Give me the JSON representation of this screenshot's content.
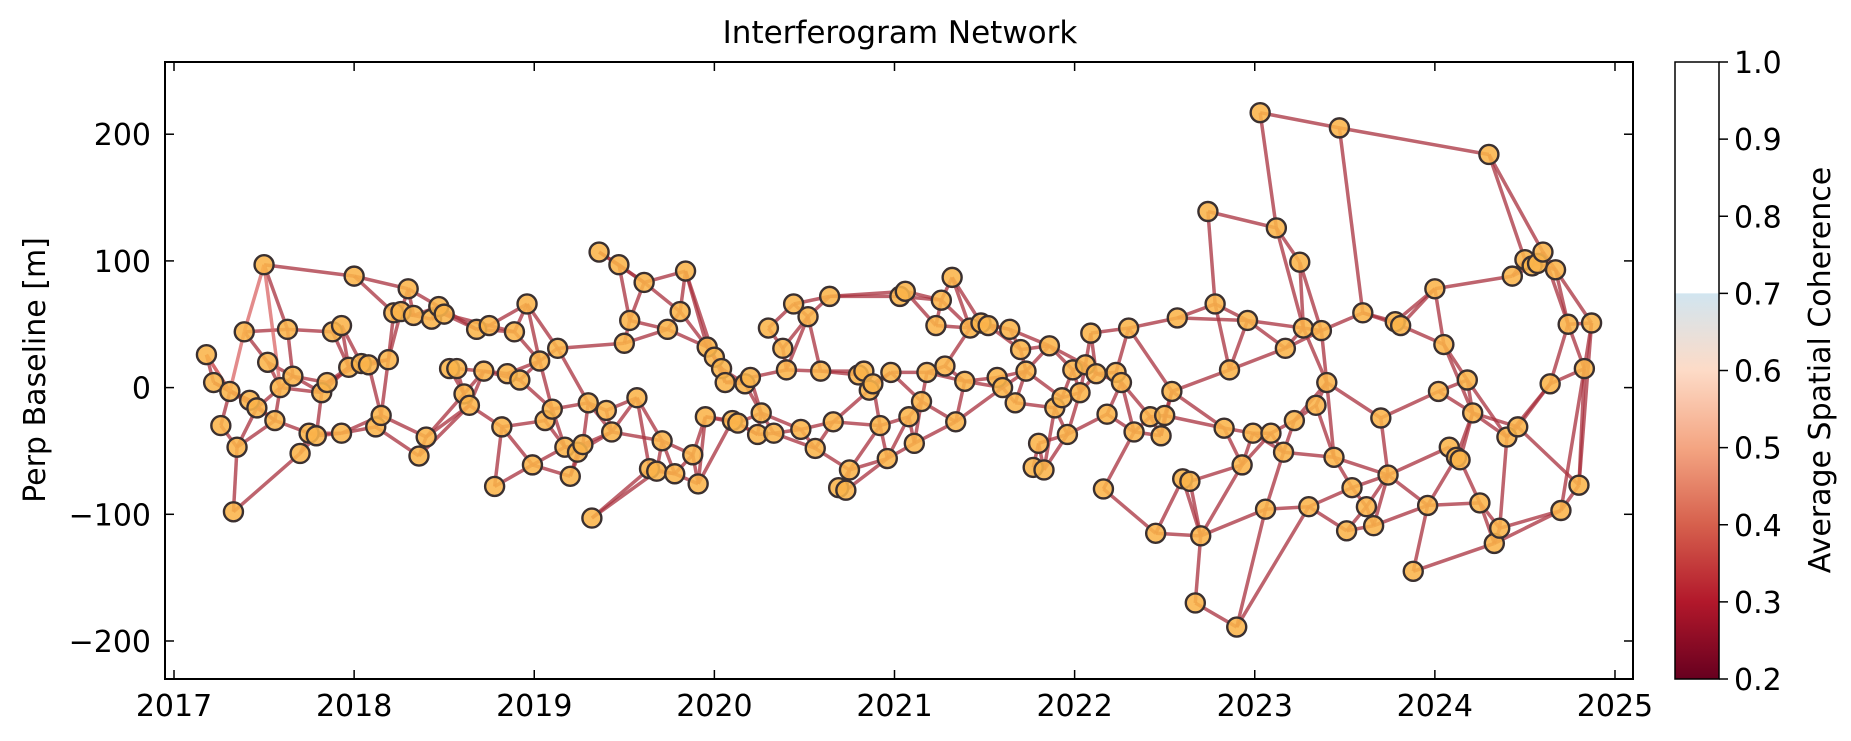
{
  "chart_data": {
    "type": "network",
    "title": "Interferogram Network",
    "xlabel": "",
    "ylabel": "Perp Baseline [m]",
    "xlim": [
      2016.95,
      2025.1
    ],
    "ylim": [
      -230,
      257
    ],
    "xticks": [
      "2017",
      "2018",
      "2019",
      "2020",
      "2021",
      "2022",
      "2023",
      "2024",
      "2025"
    ],
    "yticks": [
      -200,
      -100,
      0,
      100,
      200
    ],
    "ytick_labels": [
      "−200",
      "−100",
      "0",
      "100",
      "200"
    ],
    "colorbar": {
      "label": "Average Spatial Coherence",
      "range": [
        0.2,
        1.0
      ],
      "ticks": [
        "0.2",
        "0.3",
        "0.4",
        "0.5",
        "0.6",
        "0.7",
        "0.8",
        "0.9",
        "1.0"
      ],
      "colormap": "RdBu",
      "masked_above": 0.7
    },
    "node_color": "#fbb44a",
    "edge_color": "#a8303e",
    "acquisitions": [
      {
        "t": 2017.18,
        "bperp": 26
      },
      {
        "t": 2017.22,
        "bperp": 4
      },
      {
        "t": 2017.26,
        "bperp": -30
      },
      {
        "t": 2017.31,
        "bperp": -3
      },
      {
        "t": 2017.33,
        "bperp": -98
      },
      {
        "t": 2017.35,
        "bperp": -47
      },
      {
        "t": 2017.39,
        "bperp": 44
      },
      {
        "t": 2017.42,
        "bperp": -10
      },
      {
        "t": 2017.46,
        "bperp": -16
      },
      {
        "t": 2017.5,
        "bperp": 97
      },
      {
        "t": 2017.52,
        "bperp": 20
      },
      {
        "t": 2017.56,
        "bperp": -26
      },
      {
        "t": 2017.59,
        "bperp": 0
      },
      {
        "t": 2017.63,
        "bperp": 46
      },
      {
        "t": 2017.66,
        "bperp": 9
      },
      {
        "t": 2017.7,
        "bperp": -52
      },
      {
        "t": 2017.75,
        "bperp": -36
      },
      {
        "t": 2017.79,
        "bperp": -38
      },
      {
        "t": 2017.82,
        "bperp": -4
      },
      {
        "t": 2017.85,
        "bperp": 4
      },
      {
        "t": 2017.88,
        "bperp": 44
      },
      {
        "t": 2017.93,
        "bperp": -36
      },
      {
        "t": 2017.93,
        "bperp": 49
      },
      {
        "t": 2017.97,
        "bperp": 16
      },
      {
        "t": 2018.0,
        "bperp": 88
      },
      {
        "t": 2018.04,
        "bperp": 19
      },
      {
        "t": 2018.08,
        "bperp": 18
      },
      {
        "t": 2018.12,
        "bperp": -31
      },
      {
        "t": 2018.15,
        "bperp": -22
      },
      {
        "t": 2018.19,
        "bperp": 22
      },
      {
        "t": 2018.22,
        "bperp": 59
      },
      {
        "t": 2018.26,
        "bperp": 60
      },
      {
        "t": 2018.3,
        "bperp": 78
      },
      {
        "t": 2018.33,
        "bperp": 57
      },
      {
        "t": 2018.36,
        "bperp": -54
      },
      {
        "t": 2018.4,
        "bperp": -39
      },
      {
        "t": 2018.43,
        "bperp": 54
      },
      {
        "t": 2018.47,
        "bperp": 64
      },
      {
        "t": 2018.5,
        "bperp": 58
      },
      {
        "t": 2018.53,
        "bperp": 15
      },
      {
        "t": 2018.57,
        "bperp": 15
      },
      {
        "t": 2018.61,
        "bperp": -5
      },
      {
        "t": 2018.64,
        "bperp": -14
      },
      {
        "t": 2018.68,
        "bperp": 46
      },
      {
        "t": 2018.72,
        "bperp": 13
      },
      {
        "t": 2018.75,
        "bperp": 49
      },
      {
        "t": 2018.78,
        "bperp": -78
      },
      {
        "t": 2018.82,
        "bperp": -31
      },
      {
        "t": 2018.85,
        "bperp": 11
      },
      {
        "t": 2018.89,
        "bperp": 44
      },
      {
        "t": 2018.92,
        "bperp": 6
      },
      {
        "t": 2018.96,
        "bperp": 66
      },
      {
        "t": 2018.99,
        "bperp": -61
      },
      {
        "t": 2019.03,
        "bperp": 21
      },
      {
        "t": 2019.06,
        "bperp": -26
      },
      {
        "t": 2019.1,
        "bperp": -17
      },
      {
        "t": 2019.13,
        "bperp": 31
      },
      {
        "t": 2019.17,
        "bperp": -47
      },
      {
        "t": 2019.2,
        "bperp": -70
      },
      {
        "t": 2019.24,
        "bperp": -51
      },
      {
        "t": 2019.27,
        "bperp": -45
      },
      {
        "t": 2019.3,
        "bperp": -12
      },
      {
        "t": 2019.32,
        "bperp": -103
      },
      {
        "t": 2019.36,
        "bperp": 107
      },
      {
        "t": 2019.4,
        "bperp": -18
      },
      {
        "t": 2019.43,
        "bperp": -35
      },
      {
        "t": 2019.47,
        "bperp": 97
      },
      {
        "t": 2019.5,
        "bperp": 35
      },
      {
        "t": 2019.53,
        "bperp": 53
      },
      {
        "t": 2019.57,
        "bperp": -8
      },
      {
        "t": 2019.61,
        "bperp": 83
      },
      {
        "t": 2019.64,
        "bperp": -64
      },
      {
        "t": 2019.68,
        "bperp": -66
      },
      {
        "t": 2019.71,
        "bperp": -42
      },
      {
        "t": 2019.74,
        "bperp": 46
      },
      {
        "t": 2019.78,
        "bperp": -68
      },
      {
        "t": 2019.81,
        "bperp": 60
      },
      {
        "t": 2019.84,
        "bperp": 92
      },
      {
        "t": 2019.88,
        "bperp": -53
      },
      {
        "t": 2019.91,
        "bperp": -76
      },
      {
        "t": 2019.95,
        "bperp": -23
      },
      {
        "t": 2019.96,
        "bperp": 32
      },
      {
        "t": 2020.0,
        "bperp": 24
      },
      {
        "t": 2020.04,
        "bperp": 15
      },
      {
        "t": 2020.06,
        "bperp": 4
      },
      {
        "t": 2020.1,
        "bperp": -26
      },
      {
        "t": 2020.13,
        "bperp": -28
      },
      {
        "t": 2020.17,
        "bperp": 3
      },
      {
        "t": 2020.2,
        "bperp": 8
      },
      {
        "t": 2020.24,
        "bperp": -37
      },
      {
        "t": 2020.26,
        "bperp": -20
      },
      {
        "t": 2020.3,
        "bperp": 47
      },
      {
        "t": 2020.33,
        "bperp": -36
      },
      {
        "t": 2020.38,
        "bperp": 31
      },
      {
        "t": 2020.4,
        "bperp": 14
      },
      {
        "t": 2020.44,
        "bperp": 66
      },
      {
        "t": 2020.48,
        "bperp": -33
      },
      {
        "t": 2020.52,
        "bperp": 56
      },
      {
        "t": 2020.56,
        "bperp": -48
      },
      {
        "t": 2020.59,
        "bperp": 13
      },
      {
        "t": 2020.64,
        "bperp": 72
      },
      {
        "t": 2020.66,
        "bperp": -27
      },
      {
        "t": 2020.69,
        "bperp": -79
      },
      {
        "t": 2020.73,
        "bperp": -81
      },
      {
        "t": 2020.75,
        "bperp": -65
      },
      {
        "t": 2020.8,
        "bperp": 10
      },
      {
        "t": 2020.83,
        "bperp": 13
      },
      {
        "t": 2020.86,
        "bperp": -2
      },
      {
        "t": 2020.88,
        "bperp": 3
      },
      {
        "t": 2020.92,
        "bperp": -30
      },
      {
        "t": 2020.96,
        "bperp": -56
      },
      {
        "t": 2020.98,
        "bperp": 12
      },
      {
        "t": 2021.03,
        "bperp": 72
      },
      {
        "t": 2021.06,
        "bperp": 76
      },
      {
        "t": 2021.08,
        "bperp": -23
      },
      {
        "t": 2021.11,
        "bperp": -44
      },
      {
        "t": 2021.15,
        "bperp": -11
      },
      {
        "t": 2021.18,
        "bperp": 12
      },
      {
        "t": 2021.23,
        "bperp": 49
      },
      {
        "t": 2021.26,
        "bperp": 69
      },
      {
        "t": 2021.28,
        "bperp": 17
      },
      {
        "t": 2021.32,
        "bperp": 87
      },
      {
        "t": 2021.34,
        "bperp": -27
      },
      {
        "t": 2021.39,
        "bperp": 5
      },
      {
        "t": 2021.42,
        "bperp": 47
      },
      {
        "t": 2021.48,
        "bperp": 51
      },
      {
        "t": 2021.52,
        "bperp": 49
      },
      {
        "t": 2021.57,
        "bperp": 8
      },
      {
        "t": 2021.6,
        "bperp": 0
      },
      {
        "t": 2021.64,
        "bperp": 46
      },
      {
        "t": 2021.67,
        "bperp": -12
      },
      {
        "t": 2021.7,
        "bperp": 30
      },
      {
        "t": 2021.73,
        "bperp": 13
      },
      {
        "t": 2021.77,
        "bperp": -63
      },
      {
        "t": 2021.8,
        "bperp": -44
      },
      {
        "t": 2021.83,
        "bperp": -65
      },
      {
        "t": 2021.86,
        "bperp": 33
      },
      {
        "t": 2021.89,
        "bperp": -16
      },
      {
        "t": 2021.93,
        "bperp": -8
      },
      {
        "t": 2021.96,
        "bperp": -37
      },
      {
        "t": 2021.99,
        "bperp": 14
      },
      {
        "t": 2022.03,
        "bperp": -4
      },
      {
        "t": 2022.06,
        "bperp": 18
      },
      {
        "t": 2022.09,
        "bperp": 43
      },
      {
        "t": 2022.12,
        "bperp": 11
      },
      {
        "t": 2022.16,
        "bperp": -80
      },
      {
        "t": 2022.18,
        "bperp": -21
      },
      {
        "t": 2022.23,
        "bperp": 12
      },
      {
        "t": 2022.26,
        "bperp": 4
      },
      {
        "t": 2022.3,
        "bperp": 47
      },
      {
        "t": 2022.33,
        "bperp": -35
      },
      {
        "t": 2022.42,
        "bperp": -23
      },
      {
        "t": 2022.45,
        "bperp": -115
      },
      {
        "t": 2022.48,
        "bperp": -38
      },
      {
        "t": 2022.5,
        "bperp": -22
      },
      {
        "t": 2022.54,
        "bperp": -3
      },
      {
        "t": 2022.57,
        "bperp": 55
      },
      {
        "t": 2022.6,
        "bperp": -72
      },
      {
        "t": 2022.64,
        "bperp": -74
      },
      {
        "t": 2022.67,
        "bperp": -170
      },
      {
        "t": 2022.7,
        "bperp": -117
      },
      {
        "t": 2022.74,
        "bperp": 139
      },
      {
        "t": 2022.78,
        "bperp": 66
      },
      {
        "t": 2022.83,
        "bperp": -32
      },
      {
        "t": 2022.86,
        "bperp": 14
      },
      {
        "t": 2022.9,
        "bperp": -189
      },
      {
        "t": 2022.93,
        "bperp": -61
      },
      {
        "t": 2022.96,
        "bperp": 53
      },
      {
        "t": 2022.99,
        "bperp": -36
      },
      {
        "t": 2023.03,
        "bperp": 217
      },
      {
        "t": 2023.06,
        "bperp": -96
      },
      {
        "t": 2023.09,
        "bperp": -36
      },
      {
        "t": 2023.12,
        "bperp": 126
      },
      {
        "t": 2023.16,
        "bperp": -51
      },
      {
        "t": 2023.17,
        "bperp": 31
      },
      {
        "t": 2023.22,
        "bperp": -26
      },
      {
        "t": 2023.25,
        "bperp": 99
      },
      {
        "t": 2023.27,
        "bperp": 47
      },
      {
        "t": 2023.3,
        "bperp": -94
      },
      {
        "t": 2023.34,
        "bperp": -14
      },
      {
        "t": 2023.37,
        "bperp": 45
      },
      {
        "t": 2023.4,
        "bperp": 4
      },
      {
        "t": 2023.44,
        "bperp": -55
      },
      {
        "t": 2023.47,
        "bperp": 205
      },
      {
        "t": 2023.51,
        "bperp": -113
      },
      {
        "t": 2023.54,
        "bperp": -79
      },
      {
        "t": 2023.6,
        "bperp": 59
      },
      {
        "t": 2023.62,
        "bperp": -94
      },
      {
        "t": 2023.66,
        "bperp": -109
      },
      {
        "t": 2023.7,
        "bperp": -24
      },
      {
        "t": 2023.74,
        "bperp": -69
      },
      {
        "t": 2023.78,
        "bperp": 52
      },
      {
        "t": 2023.81,
        "bperp": 49
      },
      {
        "t": 2023.88,
        "bperp": -145
      },
      {
        "t": 2023.96,
        "bperp": -93
      },
      {
        "t": 2024.0,
        "bperp": 78
      },
      {
        "t": 2024.02,
        "bperp": -3
      },
      {
        "t": 2024.05,
        "bperp": 34
      },
      {
        "t": 2024.08,
        "bperp": -47
      },
      {
        "t": 2024.12,
        "bperp": -55
      },
      {
        "t": 2024.14,
        "bperp": -57
      },
      {
        "t": 2024.18,
        "bperp": 6
      },
      {
        "t": 2024.21,
        "bperp": -20
      },
      {
        "t": 2024.25,
        "bperp": -91
      },
      {
        "t": 2024.3,
        "bperp": 184
      },
      {
        "t": 2024.33,
        "bperp": -123
      },
      {
        "t": 2024.36,
        "bperp": -111
      },
      {
        "t": 2024.4,
        "bperp": -39
      },
      {
        "t": 2024.43,
        "bperp": 88
      },
      {
        "t": 2024.46,
        "bperp": -31
      },
      {
        "t": 2024.5,
        "bperp": 101
      },
      {
        "t": 2024.54,
        "bperp": 96
      },
      {
        "t": 2024.57,
        "bperp": 98
      },
      {
        "t": 2024.6,
        "bperp": 107
      },
      {
        "t": 2024.64,
        "bperp": 3
      },
      {
        "t": 2024.67,
        "bperp": 93
      },
      {
        "t": 2024.7,
        "bperp": -97
      },
      {
        "t": 2024.74,
        "bperp": 50
      },
      {
        "t": 2024.8,
        "bperp": -77
      },
      {
        "t": 2024.83,
        "bperp": 15
      },
      {
        "t": 2024.87,
        "bperp": 51
      }
    ]
  }
}
